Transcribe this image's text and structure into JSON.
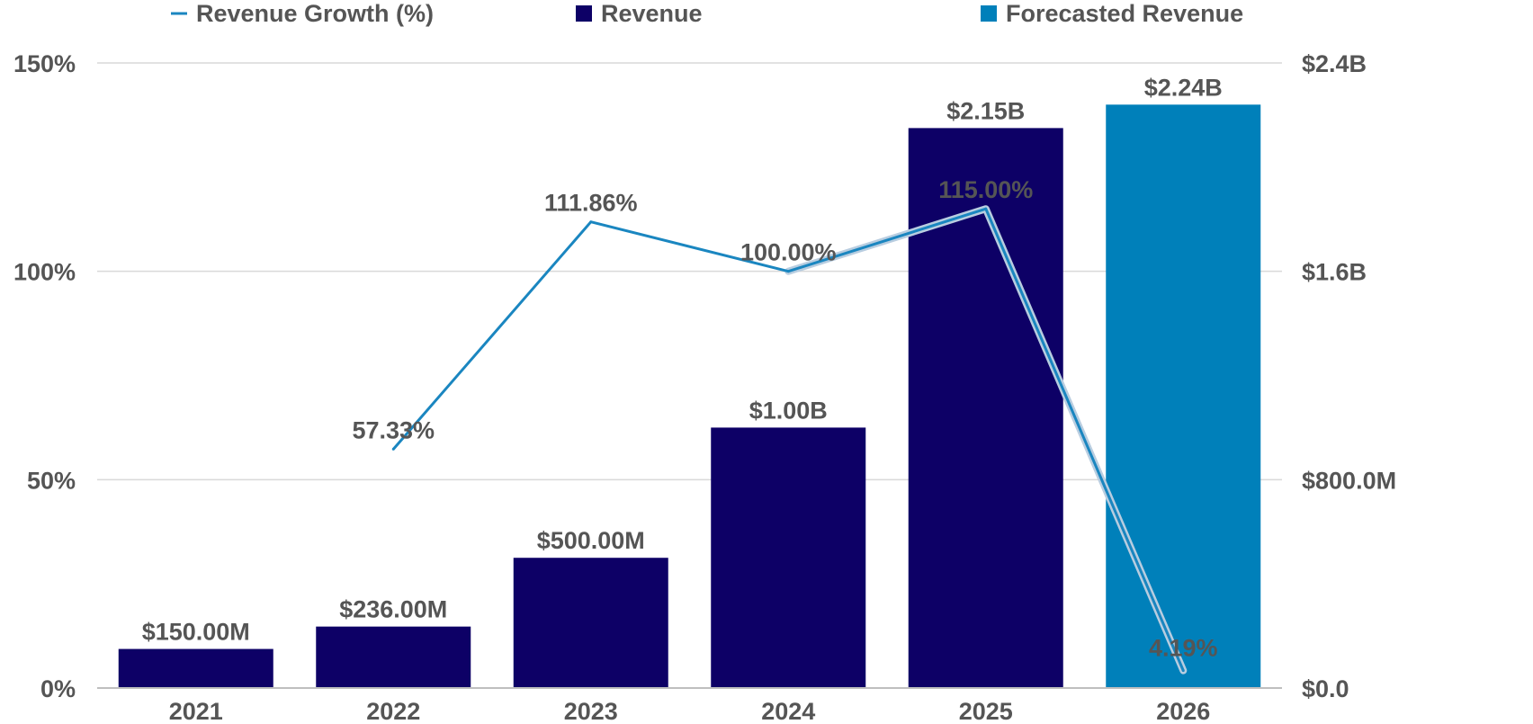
{
  "chart_data": {
    "type": "bar",
    "title": "",
    "xlabel": "",
    "categories": [
      "2021",
      "2022",
      "2023",
      "2024",
      "2025",
      "2026"
    ],
    "series": [
      {
        "name": "Revenue",
        "kind": "bar",
        "axis": "right",
        "color": "#0d0066",
        "values": [
          150000000,
          236000000,
          500000000,
          1000000000,
          2150000000,
          null
        ],
        "labels": [
          "$150.00M",
          "$236.00M",
          "$500.00M",
          "$1.00B",
          "$2.15B",
          null
        ]
      },
      {
        "name": "Forecasted Revenue",
        "kind": "bar",
        "axis": "right",
        "color": "#0080ba",
        "values": [
          null,
          null,
          null,
          null,
          null,
          2240000000
        ],
        "labels": [
          null,
          null,
          null,
          null,
          null,
          "$2.24B"
        ]
      },
      {
        "name": "Revenue Growth (%)",
        "kind": "line",
        "axis": "left",
        "color": "#1a86c0",
        "values": [
          null,
          57.33,
          111.86,
          100.0,
          115.0,
          4.19
        ],
        "labels": [
          null,
          "57.33%",
          "111.86%",
          "100.00%",
          "115.00%",
          "4.19%"
        ]
      }
    ],
    "y_left": {
      "ylim": [
        0,
        150
      ],
      "ticks": [
        0,
        50,
        100,
        150
      ],
      "tick_labels": [
        "0%",
        "50%",
        "100%",
        "150%"
      ]
    },
    "y_right": {
      "ylim": [
        0,
        2400000000
      ],
      "ticks": [
        0,
        800000000,
        1600000000,
        2400000000
      ],
      "tick_labels": [
        "$0.0",
        "$800.0M",
        "$1.6B",
        "$2.4B"
      ]
    },
    "grid": true,
    "legend_position": "top"
  }
}
